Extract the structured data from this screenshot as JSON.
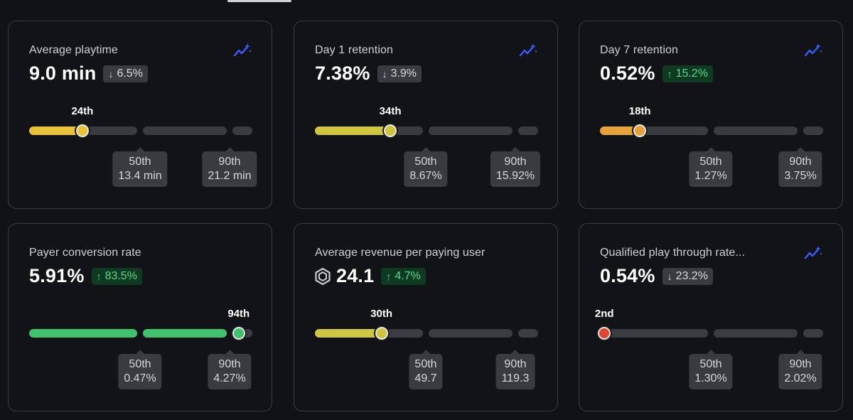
{
  "colors": {
    "yellow": "#e8c23a",
    "olive": "#cfc63f",
    "orange": "#e8a23a",
    "green": "#3fc26e",
    "red": "#e0462f",
    "track": "#3a3c42",
    "trend_icon": "#3d5bff"
  },
  "cards": [
    {
      "title": "Average playtime",
      "value": "9.0 min",
      "delta": {
        "direction": "down",
        "text": "6.5%"
      },
      "percentile": {
        "label": "24th",
        "fill_fraction": 0.24,
        "color": "#e8c23a"
      },
      "benchmarks": [
        {
          "label": "50th",
          "value": "13.4 min"
        },
        {
          "label": "90th",
          "value": "21.2 min"
        }
      ],
      "has_trend_icon": true
    },
    {
      "title": "Day 1 retention",
      "value": "7.38%",
      "delta": {
        "direction": "down",
        "text": "3.9%"
      },
      "percentile": {
        "label": "34th",
        "fill_fraction": 0.34,
        "color": "#cfc63f"
      },
      "benchmarks": [
        {
          "label": "50th",
          "value": "8.67%"
        },
        {
          "label": "90th",
          "value": "15.92%"
        }
      ],
      "has_trend_icon": true
    },
    {
      "title": "Day 7 retention",
      "value": "0.52%",
      "delta": {
        "direction": "up",
        "text": "15.2%"
      },
      "percentile": {
        "label": "18th",
        "fill_fraction": 0.18,
        "color": "#e8a23a"
      },
      "benchmarks": [
        {
          "label": "50th",
          "value": "1.27%"
        },
        {
          "label": "90th",
          "value": "3.75%"
        }
      ],
      "has_trend_icon": true
    },
    {
      "title": "Payer conversion rate",
      "value": "5.91%",
      "delta": {
        "direction": "up",
        "text": "83.5%"
      },
      "percentile": {
        "label": "94th",
        "fill_fraction": 0.94,
        "color": "#3fc26e"
      },
      "benchmarks": [
        {
          "label": "50th",
          "value": "0.47%"
        },
        {
          "label": "90th",
          "value": "4.27%"
        }
      ],
      "has_trend_icon": false
    },
    {
      "title": "Average revenue per paying user",
      "value": "24.1",
      "value_icon": "robux-icon",
      "delta": {
        "direction": "up",
        "text": "4.7%"
      },
      "percentile": {
        "label": "30th",
        "fill_fraction": 0.3,
        "color": "#cfc63f"
      },
      "benchmarks": [
        {
          "label": "50th",
          "value": "49.7"
        },
        {
          "label": "90th",
          "value": "119.3"
        }
      ],
      "has_trend_icon": false
    },
    {
      "title": "Qualified play through rate...",
      "value": "0.54%",
      "delta": {
        "direction": "down",
        "text": "23.2%"
      },
      "percentile": {
        "label": "2nd",
        "fill_fraction": 0.02,
        "color": "#e0462f"
      },
      "benchmarks": [
        {
          "label": "50th",
          "value": "1.30%"
        },
        {
          "label": "90th",
          "value": "2.02%"
        }
      ],
      "has_trend_icon": true
    }
  ]
}
